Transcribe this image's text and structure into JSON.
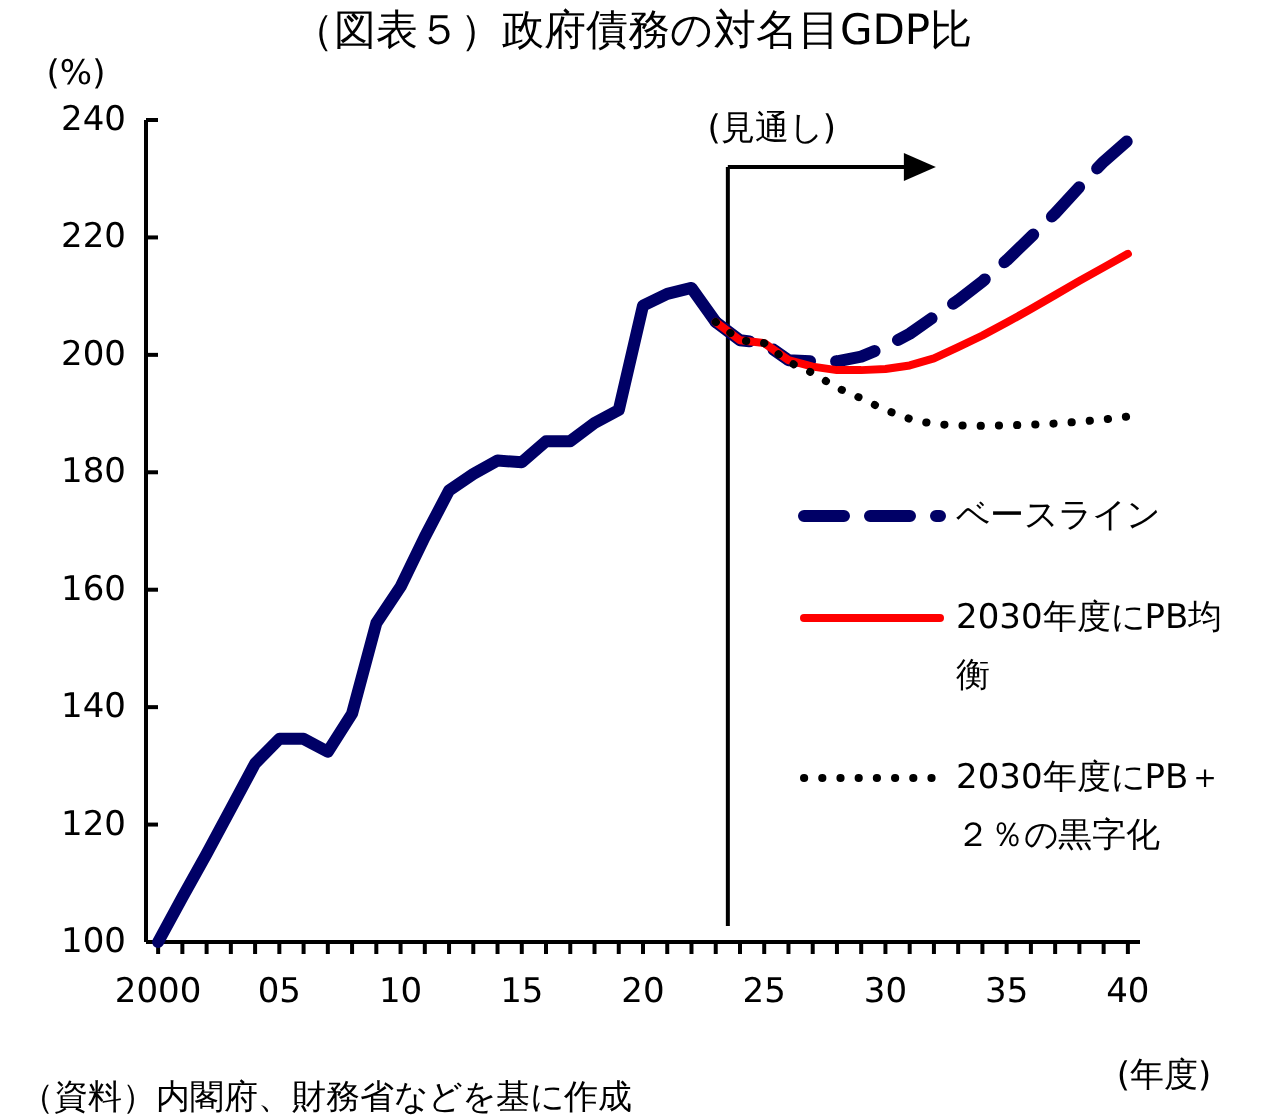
{
  "chart_data": {
    "type": "line",
    "title": "（図表５）政府債務の対名目GDP比",
    "ylabel": "(%)",
    "xlabel": "(年度)",
    "annotations": [
      "（資料）内閣府、財務省などを基に作成"
    ],
    "xlim": [
      1999.5,
      2040.5
    ],
    "ylim": [
      100,
      240
    ],
    "yticks": [
      100,
      120,
      140,
      160,
      180,
      200,
      220,
      240
    ],
    "xticks": [
      {
        "value": 2000,
        "label": "2000"
      },
      {
        "value": 2001,
        "label": null
      },
      {
        "value": 2002,
        "label": null
      },
      {
        "value": 2003,
        "label": null
      },
      {
        "value": 2004,
        "label": null
      },
      {
        "value": 2005,
        "label": "05"
      },
      {
        "value": 2006,
        "label": null
      },
      {
        "value": 2007,
        "label": null
      },
      {
        "value": 2008,
        "label": null
      },
      {
        "value": 2009,
        "label": null
      },
      {
        "value": 2010,
        "label": "10"
      },
      {
        "value": 2011,
        "label": null
      },
      {
        "value": 2012,
        "label": null
      },
      {
        "value": 2013,
        "label": null
      },
      {
        "value": 2014,
        "label": null
      },
      {
        "value": 2015,
        "label": "15"
      },
      {
        "value": 2016,
        "label": null
      },
      {
        "value": 2017,
        "label": null
      },
      {
        "value": 2018,
        "label": null
      },
      {
        "value": 2019,
        "label": null
      },
      {
        "value": 2020,
        "label": "20"
      },
      {
        "value": 2021,
        "label": null
      },
      {
        "value": 2022,
        "label": null
      },
      {
        "value": 2023,
        "label": null
      },
      {
        "value": 2024,
        "label": null
      },
      {
        "value": 2025,
        "label": "25"
      },
      {
        "value": 2026,
        "label": null
      },
      {
        "value": 2027,
        "label": null
      },
      {
        "value": 2028,
        "label": null
      },
      {
        "value": 2029,
        "label": null
      },
      {
        "value": 2030,
        "label": "30"
      },
      {
        "value": 2031,
        "label": null
      },
      {
        "value": 2032,
        "label": null
      },
      {
        "value": 2033,
        "label": null
      },
      {
        "value": 2034,
        "label": null
      },
      {
        "value": 2035,
        "label": "35"
      },
      {
        "value": 2036,
        "label": null
      },
      {
        "value": 2037,
        "label": null
      },
      {
        "value": 2038,
        "label": null
      },
      {
        "value": 2039,
        "label": null
      },
      {
        "value": 2040,
        "label": "40"
      }
    ],
    "grid": false,
    "legend": "right",
    "marker": "none",
    "ref_lines": [
      {
        "axis": "x",
        "value": 2023.5,
        "label": "(見通し)",
        "color": "#000000"
      }
    ],
    "series": [
      {
        "color": "#000066",
        "line_style": "solid",
        "x": [
          2000,
          2001,
          2002,
          2003,
          2004,
          2005,
          2006,
          2007,
          2008,
          2009,
          2010,
          2011,
          2012,
          2013,
          2014,
          2015,
          2016,
          2017,
          2018,
          2019,
          2020,
          2021,
          2022,
          2023
        ],
        "values": [
          100,
          107.6,
          115,
          122.7,
          130.4,
          134.6,
          134.6,
          132.4,
          138.9,
          154.3,
          160.5,
          169,
          176.9,
          179.7,
          182,
          181.7,
          185.3,
          185.3,
          188.4,
          190.6,
          208.4,
          210.4,
          211.4,
          205.6
        ]
      },
      {
        "name": "ベースライン",
        "color": "#000066",
        "line_style": "dashed",
        "x": [
          2023,
          2024,
          2025,
          2026,
          2027,
          2028,
          2029,
          2030,
          2031,
          2032,
          2033,
          2034,
          2035,
          2036,
          2037,
          2038,
          2039,
          2040
        ],
        "values": [
          205.6,
          202.5,
          202,
          199.1,
          198.9,
          198.9,
          199.7,
          201.4,
          203.6,
          206.5,
          209.3,
          212.5,
          216.1,
          220.1,
          224.1,
          228.6,
          232.9,
          236.5
        ]
      },
      {
        "name": "2030年度にPB均衡",
        "color": "#ff0000",
        "line_style": "solid",
        "x": [
          2023,
          2024,
          2025,
          2026,
          2027,
          2028,
          2029,
          2030,
          2031,
          2032,
          2033,
          2034,
          2035,
          2036,
          2037,
          2038,
          2039,
          2040
        ],
        "values": [
          205.6,
          202.5,
          202,
          199.1,
          198,
          197.4,
          197.4,
          197.6,
          198.2,
          199.4,
          201.3,
          203.3,
          205.5,
          207.8,
          210.2,
          212.6,
          214.9,
          217.2
        ]
      },
      {
        "name": "2030年度にPB＋２％の黒字化",
        "color": "#000000",
        "line_style": "dotted",
        "x": [
          2023,
          2024,
          2025,
          2026,
          2027,
          2028,
          2029,
          2030,
          2031,
          2032,
          2033,
          2034,
          2035,
          2036,
          2037,
          2038,
          2039,
          2040
        ],
        "values": [
          205.6,
          202.5,
          202,
          198.8,
          196.9,
          194.4,
          192.6,
          190.6,
          189.1,
          188.2,
          188,
          187.9,
          188,
          188.1,
          188.3,
          188.6,
          189,
          189.5
        ]
      }
    ]
  }
}
